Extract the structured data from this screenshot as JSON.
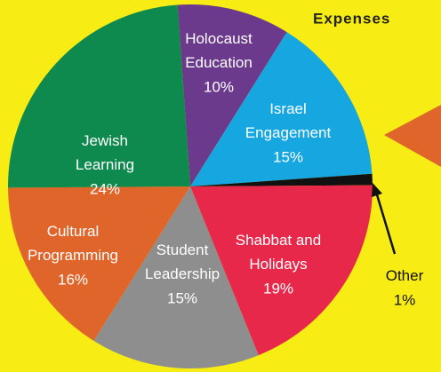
{
  "chart_data": {
    "type": "pie",
    "title": "Expenses",
    "categories": [
      "Holocaust\nEducation",
      "Israel\nEngagement",
      "Other",
      "Shabbat and\nHolidays",
      "Student\nLeadership",
      "Cultural\nProgramming",
      "Jewish\nLearning"
    ],
    "values": [
      10,
      15,
      1,
      19,
      15,
      16,
      24
    ],
    "value_labels": [
      "10%",
      "15%",
      "1%",
      "19%",
      "15%",
      "16%",
      "24%"
    ],
    "colors": [
      "#6c3a8c",
      "#16a6e0",
      "#111111",
      "#e8284a",
      "#8e8e8e",
      "#e0652b",
      "#0e8a4e"
    ]
  }
}
